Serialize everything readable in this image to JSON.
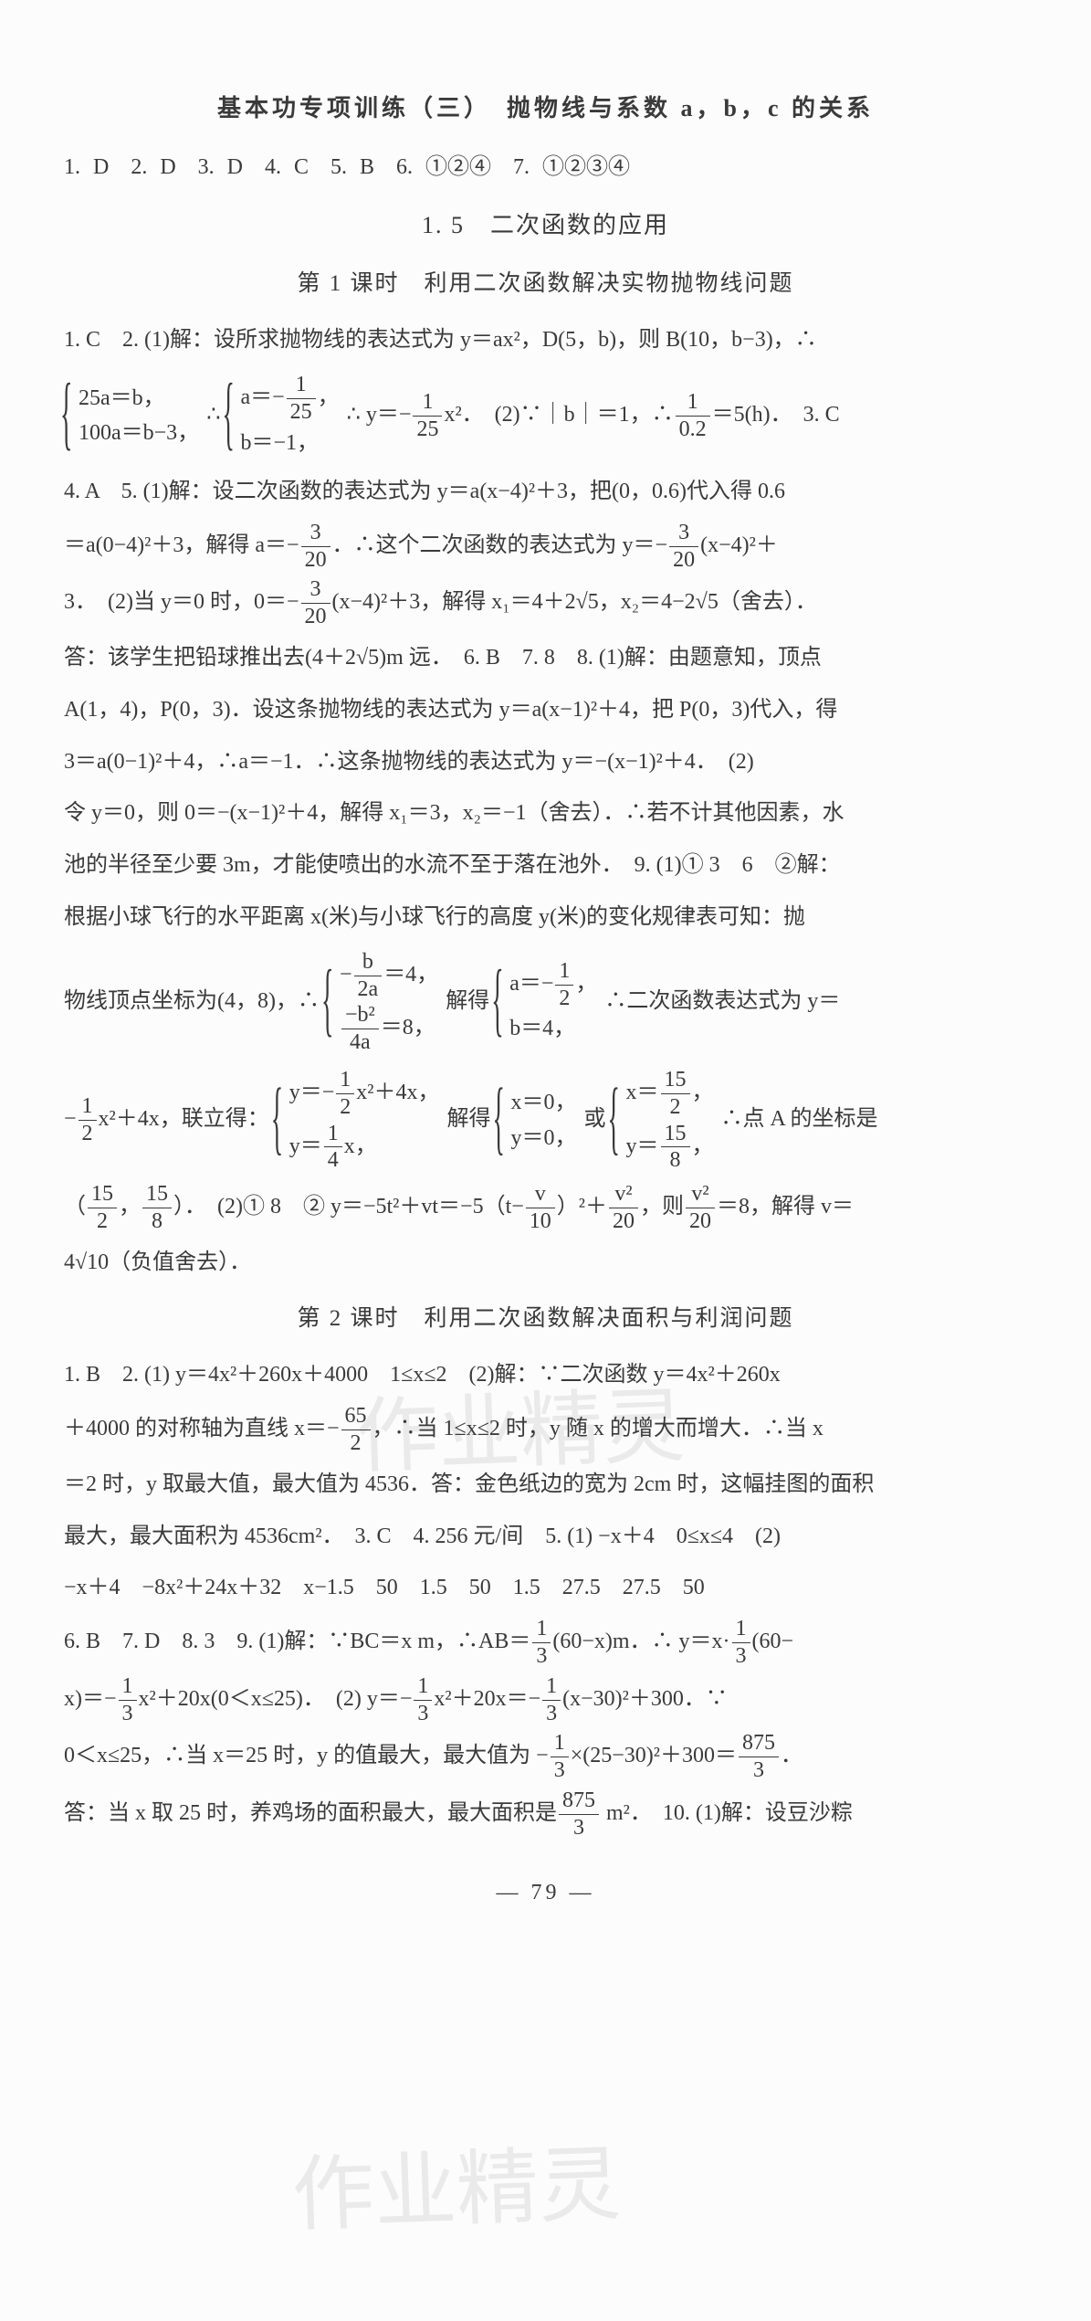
{
  "page": {
    "number": "79",
    "dash": "—"
  },
  "watermarks": {
    "wm1": "作业精灵",
    "wm2": "作业精灵"
  },
  "section1": {
    "title": "基本功专项训练（三）　抛物线与系数 a，b，c 的关系",
    "answers": "1. D　2. D　3. D　4. C　5. B　6. ①②④　7. ①②③④"
  },
  "section2": {
    "title": "1. 5　二次函数的应用"
  },
  "lesson1": {
    "title": "第 1 课时　利用二次函数解决实物抛物线问题",
    "p1a": "1. C　2. (1)解：设所求抛物线的表达式为 y＝ax²，D(5，b)，则 B(10，b−3)，∴",
    "brace1": {
      "line1": "25a＝b，",
      "line2": "100a＝b−3，"
    },
    "between1": "∴",
    "brace2": {
      "line1_pre": "a＝−",
      "line1_frac_num": "1",
      "line1_frac_den": "25",
      "line1_post": "，",
      "line2": "b＝−1，"
    },
    "p1b_pre": "∴ y＝−",
    "p1b_frac_num": "1",
    "p1b_frac_den": "25",
    "p1b_mid": "x²．　(2)∵｜b｜＝1，∴",
    "p1b_frac2_num": "1",
    "p1b_frac2_den": "0.2",
    "p1b_post": "＝5(h)．　3. C",
    "p2": "4. A　5. (1)解：设二次函数的表达式为 y＝a(x−4)²＋3，把(0，0.6)代入得 0.6",
    "p3_pre": "＝a(0−4)²＋3，解得 a＝−",
    "p3_frac_num": "3",
    "p3_frac_den": "20",
    "p3_mid": "．∴这个二次函数的表达式为 y＝−",
    "p3_frac2_num": "3",
    "p3_frac2_den": "20",
    "p3_post": "(x−4)²＋",
    "p4_pre": "3．　(2)当 y＝0 时，0＝−",
    "p4_frac_num": "3",
    "p4_frac_den": "20",
    "p4_post": "(x−4)²＋3，解得 x₁＝4＋2√5，x₂＝4−2√5（舍去）．",
    "p5": "答：该学生把铅球推出去(4＋2√5)m 远．　6. B　7. 8　8. (1)解：由题意知，顶点",
    "p6": "A(1，4)，P(0，3)．设这条抛物线的表达式为 y＝a(x−1)²＋4，把 P(0，3)代入，得",
    "p7": "3＝a(0−1)²＋4，∴a＝−1．∴这条抛物线的表达式为 y＝−(x−1)²＋4．　(2)",
    "p8": "令 y＝0，则 0＝−(x−1)²＋4，解得 x₁＝3，x₂＝−1（舍去）．∴若不计其他因素，水",
    "p9": "池的半径至少要 3m，才能使喷出的水流不至于落在池外．　9. (1)① 3　6　②解：",
    "p10": "根据小球飞行的水平距离 x(米)与小球飞行的高度 y(米)的变化规律表可知：抛",
    "p11_pre": "物线顶点坐标为(4，8)，∴",
    "brace3": {
      "line1_pre": "−",
      "line1_frac_num": "b",
      "line1_frac_den": "2a",
      "line1_post": "＝4，",
      "line2_frac_num": "−b²",
      "line2_frac_den": "4a",
      "line2_post": "＝8，"
    },
    "p11_mid": "解得",
    "brace4": {
      "line1_pre": "a＝−",
      "line1_frac_num": "1",
      "line1_frac_den": "2",
      "line1_post": "，",
      "line2": "b＝4，"
    },
    "p11_post": "∴二次函数表达式为 y＝",
    "p12_pre": "−",
    "p12_frac_num": "1",
    "p12_frac_den": "2",
    "p12_mid": "x²＋4x，联立得：",
    "brace5": {
      "line1_pre": "y＝−",
      "line1_frac_num": "1",
      "line1_frac_den": "2",
      "line1_post": "x²＋4x，",
      "line2_pre": "y＝",
      "line2_frac_num": "1",
      "line2_frac_den": "4",
      "line2_post": "x，"
    },
    "p12_mid2": "解得",
    "brace6": {
      "line1": "x＝0，",
      "line2": "y＝0，"
    },
    "p12_or": "或",
    "brace7": {
      "line1_pre": "x＝",
      "line1_frac_num": "15",
      "line1_frac_den": "2",
      "line1_post": "，",
      "line2_pre": "y＝",
      "line2_frac_num": "15",
      "line2_frac_den": "8",
      "line2_post": "，"
    },
    "p12_post": "∴点 A 的坐标是",
    "p13_pre": "（",
    "p13_frac1_num": "15",
    "p13_frac1_den": "2",
    "p13_comma": "，",
    "p13_frac2_num": "15",
    "p13_frac2_den": "8",
    "p13_mid": "）．　(2)① 8　② y＝−5t²＋vt＝−5（t−",
    "p13_frac3_num": "v",
    "p13_frac3_den": "10",
    "p13_mid2": "）²＋",
    "p13_frac4_num": "v²",
    "p13_frac4_den": "20",
    "p13_mid3": "，则",
    "p13_frac5_num": "v²",
    "p13_frac5_den": "20",
    "p13_post": "＝8，解得 v＝",
    "p14": "4√10（负值舍去）．"
  },
  "lesson2": {
    "title": "第 2 课时　利用二次函数解决面积与利润问题",
    "p1": "1. B　2. (1) y＝4x²＋260x＋4000　1≤x≤2　(2)解：∵二次函数 y＝4x²＋260x",
    "p2_pre": "＋4000 的对称轴为直线 x＝−",
    "p2_frac_num": "65",
    "p2_frac_den": "2",
    "p2_post": "，∴当 1≤x≤2 时，y 随 x 的增大而增大．∴当 x",
    "p3": "＝2 时，y 取最大值，最大值为 4536．答：金色纸边的宽为 2cm 时，这幅挂图的面积",
    "p4": "最大，最大面积为 4536cm²．　3. C　4. 256 元/间　5. (1) −x＋4　0≤x≤4　(2)",
    "p5": "−x＋4　−8x²＋24x＋32　x−1.5　50　1.5　50　1.5　27.5　27.5　50",
    "p6_pre": "6. B　7. D　8. 3　9. (1)解：∵BC＝x m，∴AB＝",
    "p6_frac_num": "1",
    "p6_frac_den": "3",
    "p6_mid": "(60−x)m．∴ y＝x·",
    "p6_frac2_num": "1",
    "p6_frac2_den": "3",
    "p6_post": "(60−",
    "p7_pre": "x)＝−",
    "p7_frac_num": "1",
    "p7_frac_den": "3",
    "p7_mid": "x²＋20x(0＜x≤25)．　(2) y＝−",
    "p7_frac2_num": "1",
    "p7_frac2_den": "3",
    "p7_mid2": "x²＋20x＝−",
    "p7_frac3_num": "1",
    "p7_frac3_den": "3",
    "p7_post": "(x−30)²＋300．∵",
    "p8_pre": "0＜x≤25，∴当 x＝25 时，y 的值最大，最大值为 −",
    "p8_frac_num": "1",
    "p8_frac_den": "3",
    "p8_mid": "×(25−30)²＋300＝",
    "p8_frac2_num": "875",
    "p8_frac2_den": "3",
    "p8_post": "．",
    "p9_pre": "答：当 x 取 25 时，养鸡场的面积最大，最大面积是",
    "p9_frac_num": "875",
    "p9_frac_den": "3",
    "p9_post": " m²．　10. (1)解：设豆沙粽"
  }
}
